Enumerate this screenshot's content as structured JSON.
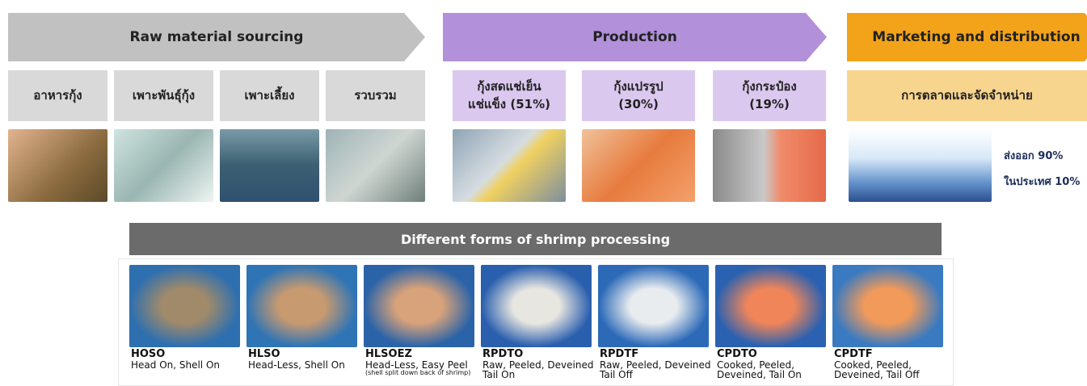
{
  "stages": [
    {
      "title": "Raw material sourcing",
      "steps": [
        {
          "lines": [
            "อาหารกุ้ง"
          ]
        },
        {
          "lines": [
            "เพาะพันธุ์กุ้ง"
          ]
        },
        {
          "lines": [
            "เพาะเลี้ยง"
          ]
        },
        {
          "lines": [
            "รวบรวม"
          ]
        }
      ]
    },
    {
      "title": "Production",
      "steps": [
        {
          "lines": [
            "กุ้งสดแช่เย็น",
            "แช่แข็ง (51%)"
          ]
        },
        {
          "lines": [
            "กุ้งแปรรูป",
            "(30%)"
          ]
        },
        {
          "lines": [
            "กุ้งกระป๋อง",
            "(19%)"
          ]
        }
      ]
    },
    {
      "title": "Marketing and distribution",
      "steps": [
        {
          "lines": [
            "การตลาดและจัดจำหน่าย"
          ]
        }
      ],
      "notes": [
        "ส่งออก 90%",
        "ในประเทศ 10%"
      ]
    }
  ],
  "processing": {
    "title": "Different forms of shrimp processing",
    "forms": [
      {
        "code": "HOSO",
        "lines": [
          "Head On, Shell On"
        ]
      },
      {
        "code": "HLSO",
        "lines": [
          "Head-Less, Shell On"
        ]
      },
      {
        "code": "HLSOEZ",
        "lines": [
          "Head-Less, Easy Peel"
        ],
        "note": "(shell split down back of shrimp)"
      },
      {
        "code": "RPDTO",
        "lines": [
          "Raw, Peeled, Deveined",
          "Tail On"
        ]
      },
      {
        "code": "RPDTF",
        "lines": [
          "Raw, Peeled, Deveined",
          "Tail Off"
        ]
      },
      {
        "code": "CPDTO",
        "lines": [
          "Cooked, Peeled,",
          "Deveined, Tail On"
        ]
      },
      {
        "code": "CPDTF",
        "lines": [
          "Cooked, Peeled,",
          "Deveined, Tail Off"
        ]
      }
    ]
  }
}
